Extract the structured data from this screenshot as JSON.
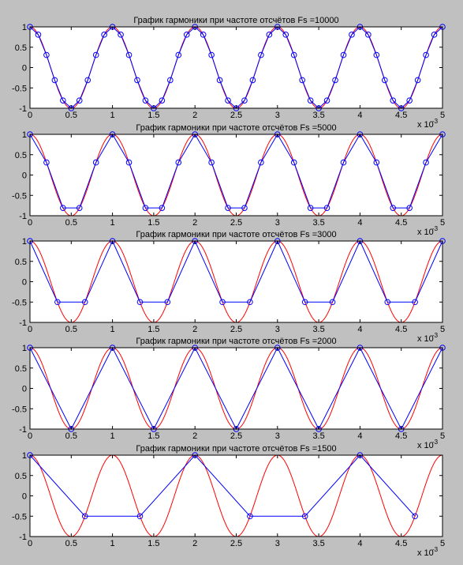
{
  "colors": {
    "figure_bg": "#c0c0c0",
    "axes_bg": "#ffffff",
    "sine": "#ff0000",
    "samples": "#0000ff"
  },
  "chart_data": [
    {
      "type": "line",
      "title": "График гармоники при частоте отсчётов Fs =10000",
      "sampling_rate_hz": 10000,
      "signal_frequency_hz": 1000,
      "xlim": [
        0,
        0.005
      ],
      "ylim": [
        -1,
        1
      ],
      "x_ticks": [
        0,
        0.5,
        1,
        1.5,
        2,
        2.5,
        3,
        3.5,
        4,
        4.5,
        5
      ],
      "y_ticks": [
        "-1",
        "-0.5",
        "0",
        "0.5",
        "1"
      ],
      "x_multiplier_label": "x 10",
      "x_multiplier_exp": "-3",
      "grid": false,
      "series": [
        {
          "role": "continuous-sine",
          "color": "#ff0000",
          "marker": "none"
        },
        {
          "role": "samples",
          "color": "#0000ff",
          "marker": "circle"
        }
      ]
    },
    {
      "type": "line",
      "title": "График гармоники при частоте отсчётов Fs =5000",
      "sampling_rate_hz": 5000,
      "signal_frequency_hz": 1000,
      "xlim": [
        0,
        0.005
      ],
      "ylim": [
        -1,
        1
      ],
      "x_ticks": [
        0,
        0.5,
        1,
        1.5,
        2,
        2.5,
        3,
        3.5,
        4,
        4.5,
        5
      ],
      "y_ticks": [
        "-1",
        "-0.5",
        "0",
        "0.5",
        "1"
      ],
      "x_multiplier_label": "x 10",
      "x_multiplier_exp": "-3",
      "grid": false,
      "series": [
        {
          "role": "continuous-sine",
          "color": "#ff0000",
          "marker": "none"
        },
        {
          "role": "samples",
          "color": "#0000ff",
          "marker": "circle"
        }
      ]
    },
    {
      "type": "line",
      "title": "График гармоники при частоте отсчётов Fs =3000",
      "sampling_rate_hz": 3000,
      "signal_frequency_hz": 1000,
      "xlim": [
        0,
        0.005
      ],
      "ylim": [
        -1,
        1
      ],
      "x_ticks": [
        0,
        0.5,
        1,
        1.5,
        2,
        2.5,
        3,
        3.5,
        4,
        4.5,
        5
      ],
      "y_ticks": [
        "-1",
        "-0.5",
        "0",
        "0.5",
        "1"
      ],
      "x_multiplier_label": "x 10",
      "x_multiplier_exp": "-3",
      "grid": false,
      "series": [
        {
          "role": "continuous-sine",
          "color": "#ff0000",
          "marker": "none"
        },
        {
          "role": "samples",
          "color": "#0000ff",
          "marker": "circle"
        }
      ]
    },
    {
      "type": "line",
      "title": "График гармоники при частоте отсчётов Fs =2000",
      "sampling_rate_hz": 2000,
      "signal_frequency_hz": 1000,
      "xlim": [
        0,
        0.005
      ],
      "ylim": [
        -1,
        1
      ],
      "x_ticks": [
        0,
        0.5,
        1,
        1.5,
        2,
        2.5,
        3,
        3.5,
        4,
        4.5,
        5
      ],
      "y_ticks": [
        "-1",
        "-0.5",
        "0",
        "0.5",
        "1"
      ],
      "x_multiplier_label": "x 10",
      "x_multiplier_exp": "-3",
      "grid": false,
      "series": [
        {
          "role": "continuous-sine",
          "color": "#ff0000",
          "marker": "none"
        },
        {
          "role": "samples",
          "color": "#0000ff",
          "marker": "circle"
        }
      ]
    },
    {
      "type": "line",
      "title": "График гармоники при частоте отсчётов Fs =1500",
      "sampling_rate_hz": 1500,
      "signal_frequency_hz": 1000,
      "xlim": [
        0,
        0.005
      ],
      "ylim": [
        -1,
        1
      ],
      "x_ticks": [
        0,
        0.5,
        1,
        1.5,
        2,
        2.5,
        3,
        3.5,
        4,
        4.5,
        5
      ],
      "y_ticks": [
        "-1",
        "-0.5",
        "0",
        "0.5",
        "1"
      ],
      "x_multiplier_label": "x 10",
      "x_multiplier_exp": "-3",
      "grid": false,
      "series": [
        {
          "role": "continuous-sine",
          "color": "#ff0000",
          "marker": "none"
        },
        {
          "role": "samples",
          "color": "#0000ff",
          "marker": "circle"
        }
      ]
    }
  ]
}
